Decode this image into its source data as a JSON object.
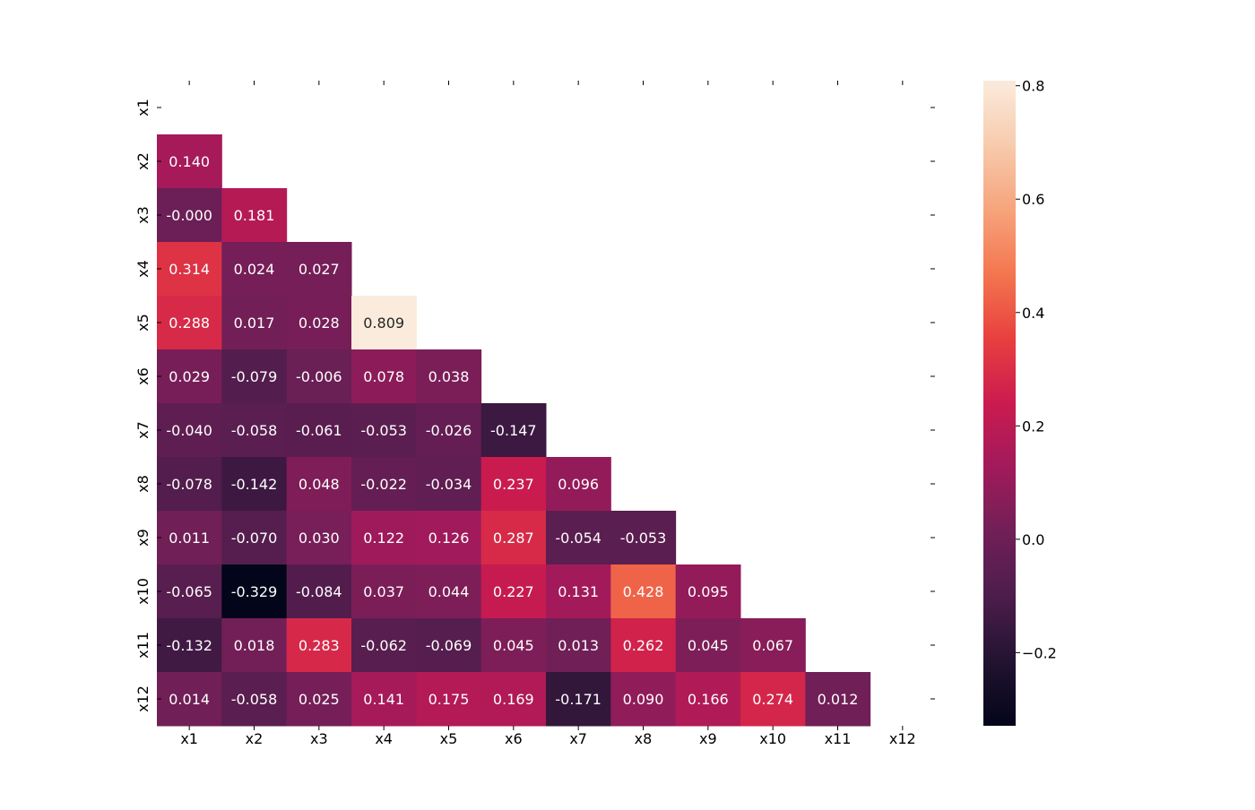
{
  "chart_data": {
    "type": "heatmap",
    "title": "",
    "xlabel": "",
    "ylabel": "",
    "mask": "upper triangle including diagonal",
    "colormap": "rocket",
    "vmin": -0.329,
    "vmax": 0.809,
    "x_labels": [
      "x1",
      "x2",
      "x3",
      "x4",
      "x5",
      "x6",
      "x7",
      "x8",
      "x9",
      "x10",
      "x11",
      "x12"
    ],
    "y_labels": [
      "x1",
      "x2",
      "x3",
      "x4",
      "x5",
      "x6",
      "x7",
      "x8",
      "x9",
      "x10",
      "x11",
      "x12"
    ],
    "values": [
      [],
      [
        "0.140"
      ],
      [
        "-0.000",
        "0.181"
      ],
      [
        "0.314",
        "0.024",
        "0.027"
      ],
      [
        "0.288",
        "0.017",
        "0.028",
        "0.809"
      ],
      [
        "0.029",
        "-0.079",
        "-0.006",
        "0.078",
        "0.038"
      ],
      [
        "-0.040",
        "-0.058",
        "-0.061",
        "-0.053",
        "-0.026",
        "-0.147"
      ],
      [
        "-0.078",
        "-0.142",
        "0.048",
        "-0.022",
        "-0.034",
        "0.237",
        "0.096"
      ],
      [
        "0.011",
        "-0.070",
        "0.030",
        "0.122",
        "0.126",
        "0.287",
        "-0.054",
        "-0.053"
      ],
      [
        "-0.065",
        "-0.329",
        "-0.084",
        "0.037",
        "0.044",
        "0.227",
        "0.131",
        "0.428",
        "0.095"
      ],
      [
        "-0.132",
        "0.018",
        "0.283",
        "-0.062",
        "-0.069",
        "0.045",
        "0.013",
        "0.262",
        "0.045",
        "0.067"
      ],
      [
        "0.014",
        "-0.058",
        "0.025",
        "0.141",
        "0.175",
        "0.169",
        "-0.171",
        "0.090",
        "0.166",
        "0.274",
        "0.012"
      ]
    ],
    "colorbar": {
      "ticks": [
        0.8,
        0.6,
        0.4,
        0.2,
        0.0,
        -0.2
      ],
      "tick_labels": [
        "0.8",
        "0.6",
        "0.4",
        "0.2",
        "0.0",
        "−0.2"
      ]
    }
  }
}
